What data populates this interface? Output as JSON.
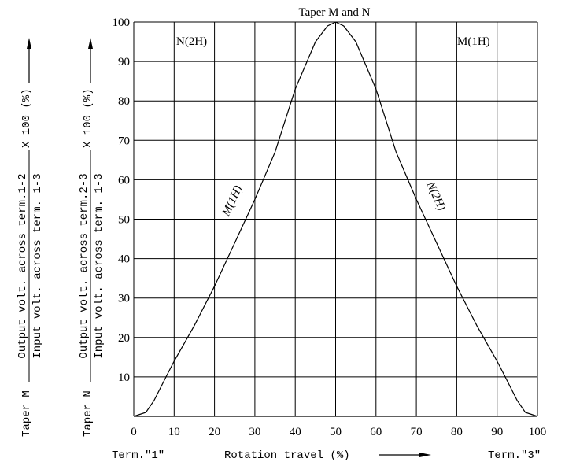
{
  "chart_data": {
    "type": "line",
    "title": "Taper M and N",
    "xlabel": "Rotation travel (%)",
    "x_start_label": "Term.\"1\"",
    "x_end_label": "Term.\"3\"",
    "xlim": [
      0,
      100
    ],
    "ylim": [
      0,
      100
    ],
    "x_ticks": [
      0,
      10,
      20,
      30,
      40,
      50,
      60,
      70,
      80,
      90,
      100
    ],
    "y_ticks": [
      10,
      20,
      30,
      40,
      50,
      60,
      70,
      80,
      90,
      100
    ],
    "grid": true,
    "ylabel_m": {
      "prefix": "Taper M",
      "numerator": "Output volt. across term.1-2",
      "denominator": "Input volt. across term. 1-3",
      "suffix": "X 100 (%)"
    },
    "ylabel_n": {
      "prefix": "Taper N",
      "numerator": "Output volt. across term.2-3",
      "denominator": "Input volt. across term. 1-3",
      "suffix": "X 100 (%)"
    },
    "corner_labels": {
      "left": "N(2H)",
      "right": "M(1H)"
    },
    "series": [
      {
        "name": "M(1H)",
        "x": [
          0,
          3,
          5,
          8,
          10,
          15,
          20,
          25,
          30,
          35,
          40,
          45,
          48,
          50
        ],
        "values": [
          0,
          1,
          4,
          10,
          14,
          23,
          33,
          44,
          55,
          67,
          83,
          95,
          99,
          100
        ]
      },
      {
        "name": "N(2H)",
        "x": [
          50,
          52,
          55,
          60,
          65,
          70,
          75,
          80,
          85,
          90,
          92,
          95,
          97,
          100
        ],
        "values": [
          100,
          99,
          95,
          83,
          67,
          55,
          44,
          33,
          23,
          14,
          10,
          4,
          1,
          0
        ]
      }
    ]
  }
}
